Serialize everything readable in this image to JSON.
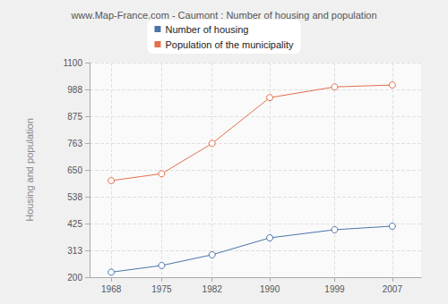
{
  "chart_data": {
    "type": "line",
    "title": "www.Map-France.com - Caumont : Number of housing and population",
    "y_label": "Housing and population",
    "x": [
      1968,
      1975,
      1982,
      1990,
      1999,
      2007
    ],
    "series": [
      {
        "name": "Number of housing",
        "color": "#4a75a8",
        "values": [
          221,
          249,
          294,
          365,
          399,
          414
        ]
      },
      {
        "name": "Population of the municipality",
        "color": "#e2704a",
        "values": [
          605,
          634,
          761,
          953,
          998,
          1006
        ]
      }
    ],
    "xlim": [
      1965,
      2011
    ],
    "xticks": [
      1968,
      1975,
      1982,
      1990,
      1999,
      2007
    ],
    "ylim": [
      200,
      1100
    ],
    "yticks": [
      200,
      {
        "value": 312.5,
        "label": "313"
      },
      425,
      {
        "value": 537.5,
        "label": "538"
      },
      650,
      {
        "value": 762.5,
        "label": "763"
      },
      875,
      {
        "value": 987.5,
        "label": "988"
      },
      1100
    ],
    "grid": true,
    "legend": "top",
    "marker": "circle"
  }
}
